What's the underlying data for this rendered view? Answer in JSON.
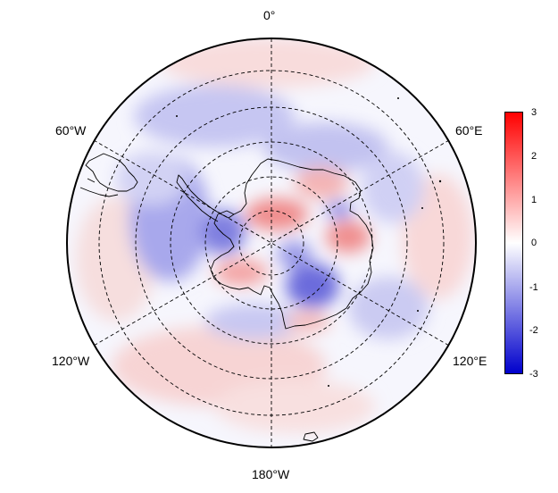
{
  "map": {
    "projection": "south-polar-stereographic",
    "longitude_labels": [
      "0°",
      "60°E",
      "120°E",
      "180°W",
      "120°W",
      "60°W"
    ],
    "colorbar": {
      "ticks": [
        "3",
        "2",
        "1",
        "0",
        "-1",
        "-2",
        "-3"
      ],
      "min": -3,
      "max": 3,
      "colors": {
        "high": "#ff0000",
        "mid": "#ffffff",
        "low": "#0000cc"
      }
    },
    "colors": {
      "coastline": "#000000",
      "gridline": "#000000",
      "border": "#000000"
    }
  }
}
